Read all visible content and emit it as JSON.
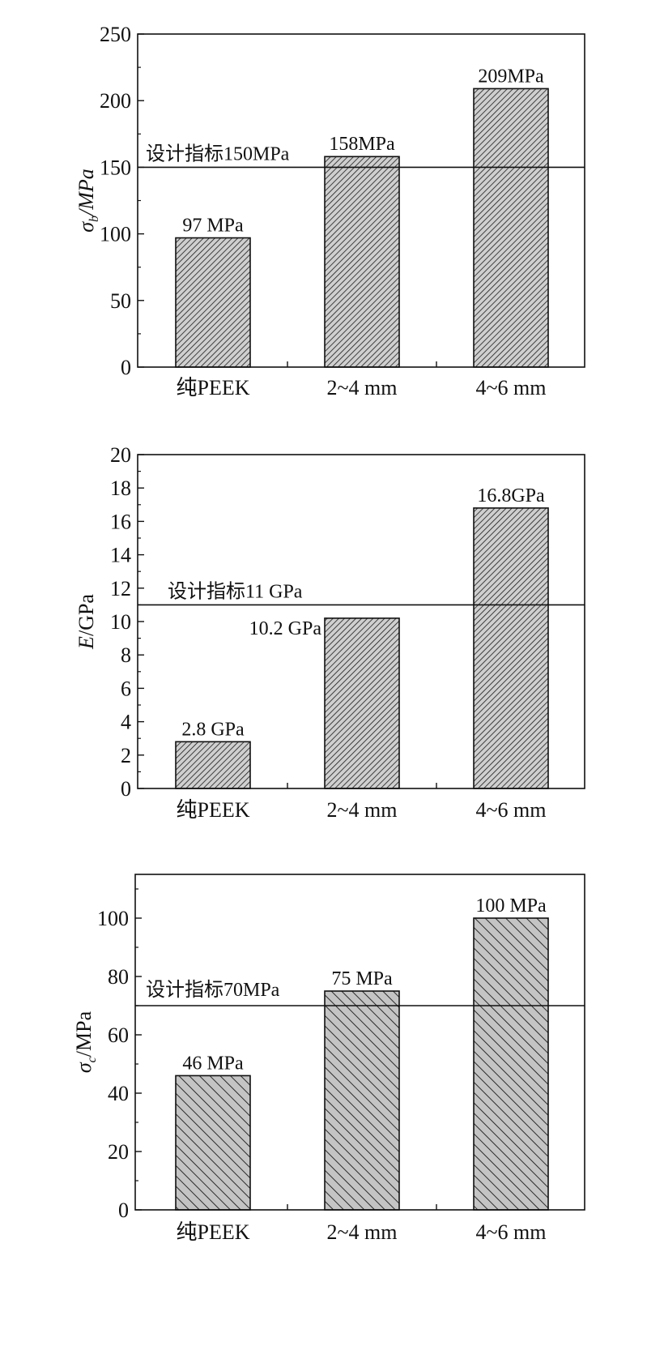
{
  "colors": {
    "bar_fill": "#c9c9c9",
    "hatch": "#1a1a1a",
    "axis": "#111111"
  },
  "chart_data": [
    {
      "type": "bar",
      "categories": [
        "纯PEEK",
        "2~4 mm",
        "4~6 mm"
      ],
      "values": [
        97,
        158,
        209
      ],
      "value_labels": [
        "97 MPa",
        "158MPa",
        "209MPa"
      ],
      "ylabel": {
        "symbol": "σ",
        "subscript": "b",
        "unit": "/MPa"
      },
      "ylim": [
        0,
        250
      ],
      "yticks": [
        0,
        50,
        100,
        150,
        200,
        250
      ],
      "yticks_text": [
        "0",
        "50",
        "100",
        "150",
        "200",
        "250"
      ],
      "reference_line": {
        "value": 150,
        "label": "设计指标150MPa"
      },
      "hatch": "dense"
    },
    {
      "type": "bar",
      "categories": [
        "纯PEEK",
        "2~4 mm",
        "4~6 mm"
      ],
      "values": [
        2.8,
        10.2,
        16.8
      ],
      "value_labels": [
        "2.8 GPa",
        "10.2 GPa",
        "16.8GPa"
      ],
      "ylabel": {
        "symbol": "E",
        "subscript": "",
        "unit": "/GPa"
      },
      "ylim": [
        0,
        20
      ],
      "yticks": [
        0,
        2,
        4,
        6,
        8,
        10,
        12,
        14,
        16,
        18,
        20
      ],
      "yticks_text": [
        "0",
        "2",
        "4",
        "6",
        "8",
        "10",
        "12",
        "14",
        "16",
        "18",
        "20"
      ],
      "reference_line": {
        "value": 11,
        "label": "设计指标11 GPa"
      },
      "hatch": "dense"
    },
    {
      "type": "bar",
      "categories": [
        "纯PEEK",
        "2~4 mm",
        "4~6 mm"
      ],
      "values": [
        46,
        75,
        100
      ],
      "value_labels": [
        "46 MPa",
        "75 MPa",
        "100 MPa"
      ],
      "ylabel": {
        "symbol": "σ",
        "subscript": "c",
        "unit": "/MPa"
      },
      "ylim": [
        0,
        115
      ],
      "yticks": [
        0,
        20,
        40,
        60,
        80,
        100
      ],
      "yticks_text": [
        "0",
        "20",
        "40",
        "60",
        "80",
        "100"
      ],
      "reference_line": {
        "value": 70,
        "label": "设计指标70MPa"
      },
      "hatch": "sparse"
    }
  ]
}
